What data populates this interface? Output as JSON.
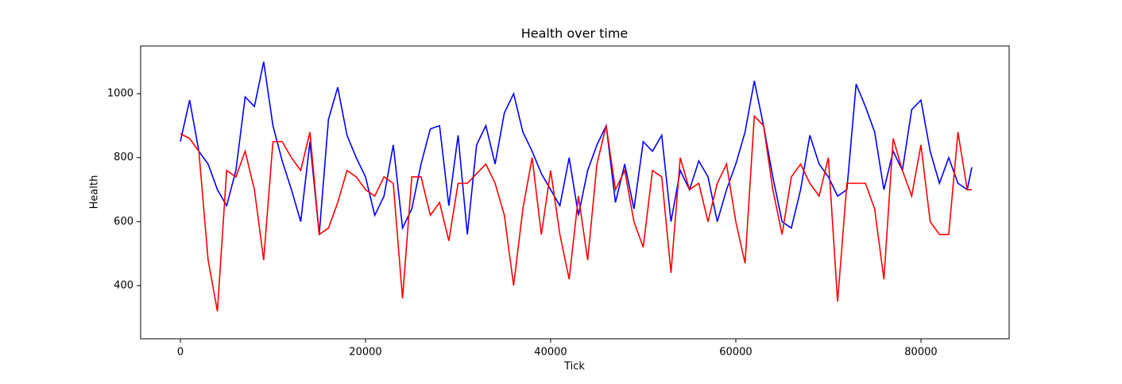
{
  "chart_data": {
    "type": "line",
    "title": "Health over time",
    "x_label": "Tick",
    "y_label": "Health",
    "x": [
      0,
      1000,
      2000,
      3000,
      4000,
      5000,
      6000,
      7000,
      8000,
      9000,
      10000,
      11000,
      12000,
      13000,
      14000,
      15000,
      16000,
      17000,
      18000,
      19000,
      20000,
      21000,
      22000,
      23000,
      24000,
      25000,
      26000,
      27000,
      28000,
      29000,
      30000,
      31000,
      32000,
      33000,
      34000,
      35000,
      36000,
      37000,
      38000,
      39000,
      40000,
      41000,
      42000,
      43000,
      44000,
      45000,
      46000,
      47000,
      48000,
      49000,
      50000,
      51000,
      52000,
      53000,
      54000,
      55000,
      56000,
      57000,
      58000,
      59000,
      60000,
      61000,
      62000,
      63000,
      64000,
      65000,
      66000,
      67000,
      68000,
      69000,
      70000,
      71000,
      72000,
      73000,
      74000,
      75000,
      76000,
      77000,
      78000,
      79000,
      80000,
      81000,
      82000,
      83000,
      84000,
      85000,
      85500
    ],
    "series": [
      {
        "color": "#0000ff",
        "values": [
          850,
          980,
          820,
          780,
          700,
          650,
          760,
          990,
          960,
          1100,
          900,
          790,
          700,
          600,
          850,
          560,
          920,
          1020,
          870,
          800,
          740,
          620,
          680,
          840,
          580,
          640,
          780,
          890,
          900,
          650,
          870,
          560,
          840,
          900,
          780,
          940,
          1000,
          880,
          820,
          750,
          700,
          650,
          800,
          620,
          760,
          840,
          900,
          660,
          780,
          640,
          850,
          820,
          870,
          600,
          760,
          700,
          790,
          740,
          600,
          700,
          780,
          880,
          1040,
          900,
          740,
          600,
          580,
          700,
          870,
          780,
          740,
          680,
          700,
          1030,
          960,
          880,
          700,
          820,
          760,
          950,
          980,
          820,
          720,
          800,
          720,
          700,
          770
        ]
      },
      {
        "color": "#ff0000",
        "values": [
          875,
          860,
          820,
          480,
          320,
          760,
          740,
          820,
          700,
          480,
          850,
          850,
          800,
          760,
          880,
          560,
          580,
          660,
          760,
          740,
          700,
          680,
          740,
          720,
          360,
          740,
          740,
          620,
          660,
          540,
          720,
          720,
          750,
          780,
          720,
          620,
          400,
          640,
          800,
          560,
          760,
          560,
          420,
          680,
          480,
          780,
          900,
          700,
          760,
          600,
          520,
          760,
          740,
          440,
          800,
          700,
          720,
          600,
          720,
          780,
          600,
          470,
          930,
          900,
          700,
          560,
          740,
          780,
          720,
          680,
          800,
          350,
          720,
          720,
          720,
          640,
          420,
          860,
          760,
          680,
          840,
          600,
          560,
          560,
          880,
          700,
          700
        ]
      }
    ],
    "xlim": [
      -4290,
      89530
    ],
    "ylim": [
      234,
      1149
    ],
    "xticks": [
      0,
      20000,
      40000,
      60000,
      80000
    ],
    "yticks": [
      400,
      600,
      800,
      1000
    ]
  }
}
